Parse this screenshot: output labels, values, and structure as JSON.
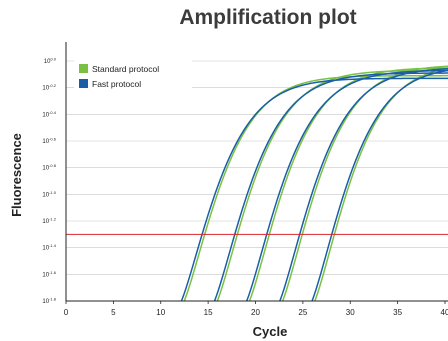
{
  "chart_data": {
    "type": "line",
    "title": "Amplification plot",
    "xlabel": "Cycle",
    "ylabel": "Fluorescence",
    "x_ticks": [
      0,
      5,
      10,
      15,
      20,
      25,
      30,
      35,
      40
    ],
    "xlim": [
      0,
      40
    ],
    "y_scale": "log10",
    "y_exponents": [
      0.0,
      -0.2,
      -0.4,
      -0.6,
      -0.8,
      -1.0,
      -1.2,
      -1.4,
      -1.6,
      -1.8
    ],
    "y_tick_labels": [
      "10",
      "10",
      "10",
      "10",
      "10",
      "10",
      "10",
      "10",
      "10",
      "10"
    ],
    "y_tick_superscripts": [
      "0.0",
      "-0.2",
      "-0.4",
      "-0.6",
      "-0.8",
      "-1.0",
      "-1.2",
      "-1.4",
      "-1.6",
      "-1.8"
    ],
    "ylim_exponent": [
      -1.8,
      0.0
    ],
    "threshold_exponent": -1.3,
    "grid": true,
    "legend_position": "top-left",
    "series": [
      {
        "name": "Standard protocol",
        "color": "#7ac143",
        "curves": [
          {
            "start_cycle": 12.1,
            "plateau_exponent": -0.11
          },
          {
            "start_cycle": 15.6,
            "plateau_exponent": -0.07
          },
          {
            "start_cycle": 19.0,
            "plateau_exponent": -0.05
          },
          {
            "start_cycle": 22.5,
            "plateau_exponent": -0.03
          },
          {
            "start_cycle": 25.9,
            "plateau_exponent": -0.02
          }
        ]
      },
      {
        "name": "Fast protocol",
        "color": "#1a5ea8",
        "curves": [
          {
            "start_cycle": 11.8,
            "plateau_exponent": -0.13
          },
          {
            "start_cycle": 15.3,
            "plateau_exponent": -0.09
          },
          {
            "start_cycle": 18.7,
            "plateau_exponent": -0.07
          },
          {
            "start_cycle": 22.2,
            "plateau_exponent": -0.05
          },
          {
            "start_cycle": 25.6,
            "plateau_exponent": -0.04
          }
        ]
      }
    ],
    "threshold_color": "#d9262e"
  }
}
